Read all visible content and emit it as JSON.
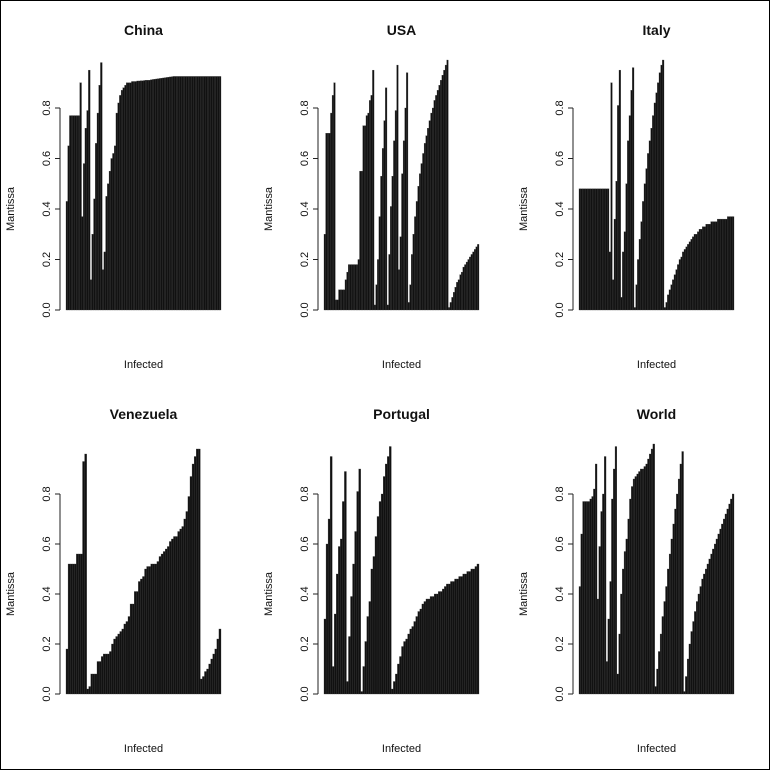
{
  "chart_data": [
    {
      "type": "bar",
      "title": "China",
      "xlabel": "Infected",
      "ylabel": "Mantissa",
      "ylim": [
        0,
        1
      ],
      "yticks": [
        "0.0",
        "0.2",
        "0.4",
        "0.6",
        "0.8"
      ],
      "values": [
        0.43,
        0.65,
        0.77,
        0.77,
        0.77,
        0.77,
        0.77,
        0.77,
        0.9,
        0.37,
        0.58,
        0.72,
        0.79,
        0.95,
        0.12,
        0.3,
        0.44,
        0.66,
        0.78,
        0.89,
        0.98,
        0.16,
        0.23,
        0.45,
        0.5,
        0.55,
        0.6,
        0.62,
        0.65,
        0.78,
        0.82,
        0.85,
        0.87,
        0.88,
        0.89,
        0.9,
        0.9,
        0.9,
        0.905,
        0.905,
        0.905,
        0.907,
        0.907,
        0.908,
        0.908,
        0.909,
        0.91,
        0.91,
        0.91,
        0.912,
        0.913,
        0.914,
        0.915,
        0.916,
        0.917,
        0.918,
        0.919,
        0.92,
        0.921,
        0.922,
        0.923,
        0.924,
        0.925,
        0.925,
        0.925,
        0.925,
        0.925,
        0.925,
        0.925,
        0.925,
        0.925,
        0.925,
        0.925,
        0.925,
        0.925,
        0.925,
        0.925,
        0.925,
        0.925,
        0.925,
        0.925,
        0.925,
        0.925,
        0.925,
        0.925,
        0.925,
        0.925,
        0.925,
        0.925,
        0.925
      ]
    },
    {
      "type": "bar",
      "title": "USA",
      "xlabel": "Infected",
      "ylabel": "Mantissa",
      "ylim": [
        0,
        1
      ],
      "yticks": [
        "0.0",
        "0.2",
        "0.4",
        "0.6",
        "0.8"
      ],
      "values": [
        0.3,
        0.7,
        0.7,
        0.7,
        0.78,
        0.85,
        0.9,
        0.04,
        0.04,
        0.08,
        0.08,
        0.08,
        0.08,
        0.12,
        0.15,
        0.18,
        0.18,
        0.18,
        0.18,
        0.18,
        0.18,
        0.2,
        0.55,
        0.55,
        0.73,
        0.73,
        0.77,
        0.78,
        0.83,
        0.85,
        0.95,
        0.02,
        0.1,
        0.2,
        0.37,
        0.53,
        0.64,
        0.75,
        0.88,
        0.02,
        0.22,
        0.41,
        0.53,
        0.67,
        0.79,
        0.97,
        0.16,
        0.29,
        0.54,
        0.67,
        0.8,
        0.94,
        0.03,
        0.1,
        0.22,
        0.3,
        0.37,
        0.43,
        0.49,
        0.54,
        0.58,
        0.62,
        0.66,
        0.69,
        0.72,
        0.75,
        0.78,
        0.8,
        0.83,
        0.85,
        0.87,
        0.89,
        0.91,
        0.93,
        0.95,
        0.97,
        0.99,
        0.01,
        0.03,
        0.05,
        0.07,
        0.09,
        0.11,
        0.12,
        0.14,
        0.15,
        0.17,
        0.18,
        0.19,
        0.2,
        0.21,
        0.22,
        0.23,
        0.24,
        0.25,
        0.26
      ]
    },
    {
      "type": "bar",
      "title": "Italy",
      "xlabel": "Infected",
      "ylabel": "Mantissa",
      "ylim": [
        0,
        1
      ],
      "yticks": [
        "0.0",
        "0.2",
        "0.4",
        "0.6",
        "0.8"
      ],
      "values": [
        0.48,
        0.48,
        0.48,
        0.48,
        0.48,
        0.48,
        0.48,
        0.48,
        0.48,
        0.48,
        0.48,
        0.48,
        0.48,
        0.48,
        0.48,
        0.48,
        0.48,
        0.48,
        0.23,
        0.9,
        0.12,
        0.36,
        0.51,
        0.81,
        0.95,
        0.05,
        0.23,
        0.31,
        0.5,
        0.67,
        0.77,
        0.87,
        0.96,
        0.01,
        0.1,
        0.2,
        0.28,
        0.35,
        0.43,
        0.5,
        0.56,
        0.62,
        0.67,
        0.72,
        0.77,
        0.82,
        0.86,
        0.9,
        0.94,
        0.97,
        0.99,
        0.01,
        0.03,
        0.06,
        0.08,
        0.1,
        0.12,
        0.14,
        0.16,
        0.18,
        0.2,
        0.21,
        0.23,
        0.24,
        0.25,
        0.26,
        0.27,
        0.28,
        0.29,
        0.3,
        0.3,
        0.31,
        0.32,
        0.32,
        0.33,
        0.33,
        0.34,
        0.34,
        0.34,
        0.35,
        0.35,
        0.35,
        0.35,
        0.36,
        0.36,
        0.36,
        0.36,
        0.36,
        0.36,
        0.37,
        0.37,
        0.37,
        0.37
      ]
    },
    {
      "type": "bar",
      "title": "Venezuela",
      "xlabel": "Infected",
      "ylabel": "Mantissa",
      "ylim": [
        0,
        1
      ],
      "yticks": [
        "0.0",
        "0.2",
        "0.4",
        "0.6",
        "0.8"
      ],
      "values": [
        0.18,
        0.52,
        0.52,
        0.52,
        0.52,
        0.56,
        0.56,
        0.56,
        0.93,
        0.96,
        0.02,
        0.03,
        0.08,
        0.08,
        0.08,
        0.13,
        0.13,
        0.15,
        0.16,
        0.16,
        0.16,
        0.17,
        0.2,
        0.22,
        0.23,
        0.24,
        0.25,
        0.26,
        0.28,
        0.29,
        0.31,
        0.36,
        0.36,
        0.41,
        0.41,
        0.45,
        0.46,
        0.47,
        0.5,
        0.51,
        0.51,
        0.52,
        0.52,
        0.52,
        0.53,
        0.55,
        0.56,
        0.57,
        0.58,
        0.59,
        0.61,
        0.62,
        0.63,
        0.63,
        0.65,
        0.66,
        0.67,
        0.7,
        0.73,
        0.79,
        0.87,
        0.92,
        0.95,
        0.98,
        0.98,
        0.06,
        0.07,
        0.09,
        0.1,
        0.12,
        0.14,
        0.16,
        0.18,
        0.22,
        0.26
      ]
    },
    {
      "type": "bar",
      "title": "Portugal",
      "xlabel": "Infected",
      "ylabel": "Mantissa",
      "ylim": [
        0,
        1
      ],
      "yticks": [
        "0.0",
        "0.2",
        "0.4",
        "0.6",
        "0.8"
      ],
      "values": [
        0.3,
        0.6,
        0.7,
        0.95,
        0.11,
        0.32,
        0.48,
        0.59,
        0.62,
        0.77,
        0.89,
        0.05,
        0.23,
        0.39,
        0.52,
        0.65,
        0.81,
        0.9,
        0.01,
        0.11,
        0.21,
        0.31,
        0.37,
        0.5,
        0.55,
        0.63,
        0.71,
        0.77,
        0.8,
        0.87,
        0.92,
        0.95,
        0.99,
        0.02,
        0.05,
        0.08,
        0.12,
        0.15,
        0.19,
        0.21,
        0.22,
        0.24,
        0.26,
        0.27,
        0.29,
        0.31,
        0.33,
        0.34,
        0.36,
        0.37,
        0.38,
        0.38,
        0.39,
        0.39,
        0.4,
        0.4,
        0.41,
        0.41,
        0.42,
        0.43,
        0.44,
        0.44,
        0.45,
        0.45,
        0.46,
        0.46,
        0.47,
        0.47,
        0.48,
        0.48,
        0.49,
        0.49,
        0.5,
        0.5,
        0.51,
        0.52
      ]
    },
    {
      "type": "bar",
      "title": "World",
      "xlabel": "Infected",
      "ylabel": "Mantissa",
      "ylim": [
        0,
        1
      ],
      "yticks": [
        "0.0",
        "0.2",
        "0.4",
        "0.6",
        "0.8"
      ],
      "values": [
        0.43,
        0.64,
        0.77,
        0.77,
        0.77,
        0.77,
        0.78,
        0.79,
        0.82,
        0.92,
        0.38,
        0.59,
        0.73,
        0.8,
        0.95,
        0.13,
        0.3,
        0.45,
        0.78,
        0.9,
        0.99,
        0.08,
        0.24,
        0.4,
        0.5,
        0.57,
        0.62,
        0.7,
        0.78,
        0.83,
        0.86,
        0.87,
        0.88,
        0.89,
        0.9,
        0.9,
        0.91,
        0.92,
        0.94,
        0.96,
        0.98,
        1.0,
        0.03,
        0.1,
        0.17,
        0.24,
        0.31,
        0.37,
        0.43,
        0.5,
        0.56,
        0.62,
        0.68,
        0.74,
        0.8,
        0.86,
        0.92,
        0.97,
        0.01,
        0.07,
        0.14,
        0.2,
        0.25,
        0.29,
        0.33,
        0.37,
        0.4,
        0.43,
        0.46,
        0.48,
        0.5,
        0.52,
        0.54,
        0.56,
        0.58,
        0.6,
        0.62,
        0.64,
        0.66,
        0.68,
        0.7,
        0.72,
        0.74,
        0.76,
        0.78,
        0.8
      ]
    }
  ],
  "colors": {
    "bar": "#111111",
    "bar_edge": "#3a3a3a",
    "axis": "#222222"
  }
}
